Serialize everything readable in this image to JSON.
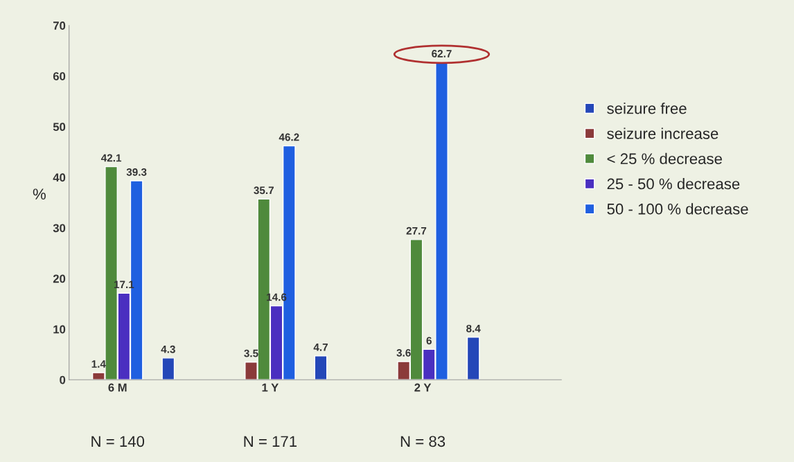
{
  "chart_data": {
    "type": "bar",
    "ylabel": "%",
    "categories": [
      "6 M",
      "1 Y",
      "2 Y"
    ],
    "series": [
      {
        "name": "seizure free",
        "color": "#2447b8",
        "values": [
          4.3,
          4.7,
          8.4
        ]
      },
      {
        "name": "seizure increase",
        "color": "#8b3a3a",
        "values": [
          1.4,
          3.5,
          3.6
        ]
      },
      {
        "name": "< 25 % decrease",
        "color": "#4f8a3c",
        "values": [
          42.1,
          35.7,
          27.7
        ]
      },
      {
        "name": "25 - 50 % decrease",
        "color": "#4a2fc0",
        "values": [
          17.1,
          14.6,
          6
        ]
      },
      {
        "name": "50 - 100 % decrease",
        "color": "#1f5fe0",
        "values": [
          39.3,
          46.2,
          62.7
        ]
      }
    ],
    "ylim": [
      0,
      70
    ],
    "yticks": [
      0,
      10,
      20,
      30,
      40,
      50,
      60,
      70
    ],
    "data_labels": true,
    "legend": "right",
    "grid": false,
    "annotations": [
      "N = 140",
      "N = 171",
      "N = 83"
    ]
  }
}
